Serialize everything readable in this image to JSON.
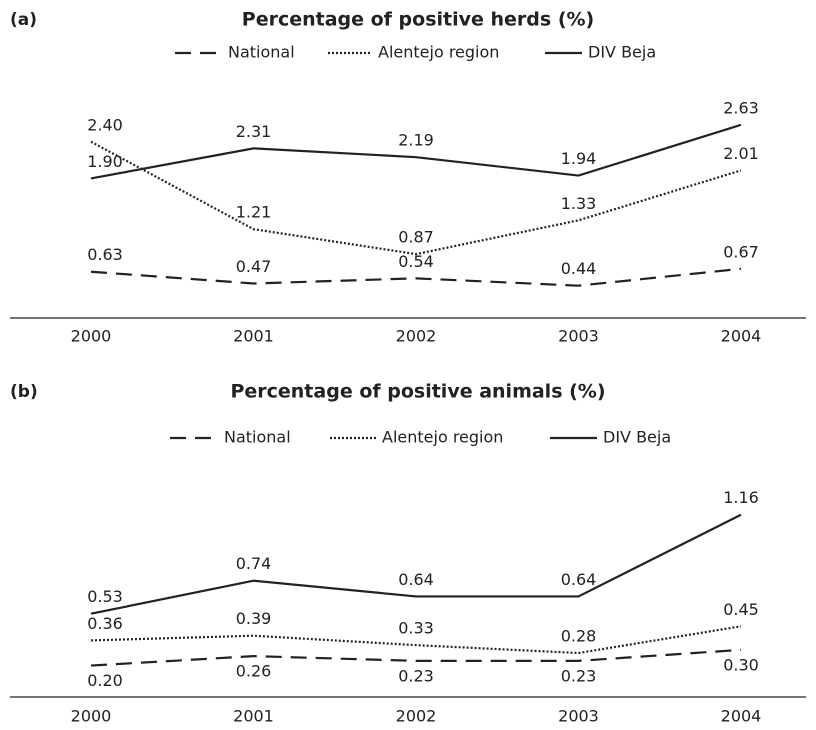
{
  "chart_data": [
    {
      "type": "line",
      "panel_label": "(a)",
      "title": "Percentage of positive herds (%)",
      "categories": [
        "2000",
        "2001",
        "2002",
        "2003",
        "2004"
      ],
      "ylim": [
        0,
        3.2
      ],
      "series": [
        {
          "name": "National",
          "color": "#222222",
          "dash": "dashed",
          "values": [
            0.63,
            0.47,
            0.54,
            0.44,
            0.67
          ],
          "value_labels": [
            "0.63",
            "0.47",
            "0.54",
            "0.44",
            "0.67"
          ]
        },
        {
          "name": "Alentejo region",
          "color": "#222222",
          "dash": "dotted",
          "values": [
            2.4,
            1.21,
            0.87,
            1.33,
            2.01
          ],
          "value_labels": [
            "2.40",
            "1.21",
            "0.87",
            "1.33",
            "2.01"
          ]
        },
        {
          "name": "DIV Beja",
          "color": "#222222",
          "dash": "solid",
          "values": [
            1.9,
            2.31,
            2.19,
            1.94,
            2.63
          ],
          "value_labels": [
            "1.90",
            "2.31",
            "2.19",
            "1.94",
            "2.63"
          ]
        }
      ]
    },
    {
      "type": "line",
      "panel_label": "(b)",
      "title": "Percentage of positive animals (%)",
      "categories": [
        "2000",
        "2001",
        "2002",
        "2003",
        "2004"
      ],
      "ylim": [
        0,
        1.4
      ],
      "series": [
        {
          "name": "National",
          "color": "#222222",
          "dash": "dashed",
          "label_position": "below",
          "values": [
            0.2,
            0.26,
            0.23,
            0.23,
            0.3
          ],
          "value_labels": [
            "0.20",
            "0.26",
            "0.23",
            "0.23",
            "0.30"
          ]
        },
        {
          "name": "Alentejo region",
          "color": "#222222",
          "dash": "dotted",
          "values": [
            0.36,
            0.39,
            0.33,
            0.28,
            0.45
          ],
          "value_labels": [
            "0.36",
            "0.39",
            "0.33",
            "0.28",
            "0.45"
          ]
        },
        {
          "name": "DIV Beja",
          "color": "#222222",
          "dash": "solid",
          "values": [
            0.53,
            0.74,
            0.64,
            0.64,
            1.16
          ],
          "value_labels": [
            "0.53",
            "0.74",
            "0.64",
            "0.64",
            "1.16"
          ]
        }
      ]
    }
  ]
}
